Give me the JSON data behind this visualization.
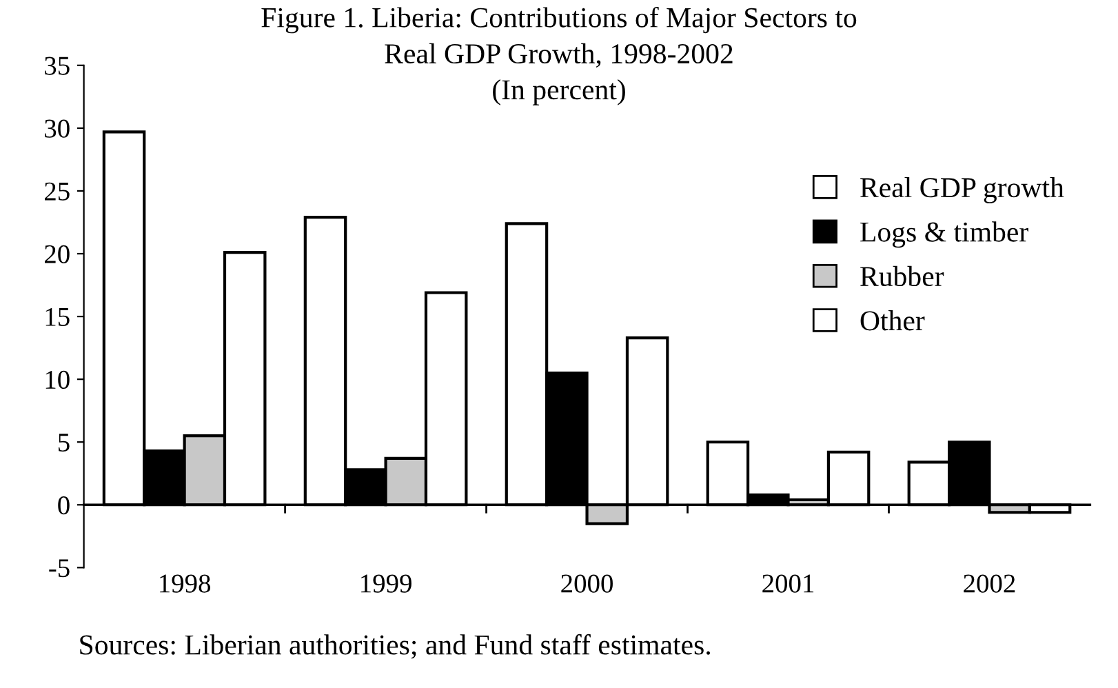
{
  "chart_data": {
    "type": "bar",
    "title": "Figure 1. Liberia: Contributions of Major Sectors to\nReal GDP Growth, 1998-2002",
    "subtitle": "(In percent)",
    "categories": [
      "1998",
      "1999",
      "2000",
      "2001",
      "2002"
    ],
    "series": [
      {
        "name": "Real GDP growth",
        "color": "#ffffff",
        "values": [
          29.7,
          22.9,
          22.4,
          5.0,
          3.4
        ]
      },
      {
        "name": "Logs & timber",
        "color": "#000000",
        "values": [
          4.3,
          2.8,
          10.5,
          0.8,
          5.0
        ]
      },
      {
        "name": "Rubber",
        "color": "#c8c8c8",
        "values": [
          5.5,
          3.7,
          -1.5,
          0.4,
          -0.6
        ]
      },
      {
        "name": "Other",
        "color": "#ffffff",
        "values": [
          20.1,
          16.9,
          13.3,
          4.2,
          -0.6
        ]
      }
    ],
    "ylim": [
      -5,
      35
    ],
    "yticks": [
      -5,
      0,
      5,
      10,
      15,
      20,
      25,
      30,
      35
    ],
    "legend": "right",
    "annotations": [
      "Sources: Liberian authorities; and Fund staff estimates."
    ]
  }
}
